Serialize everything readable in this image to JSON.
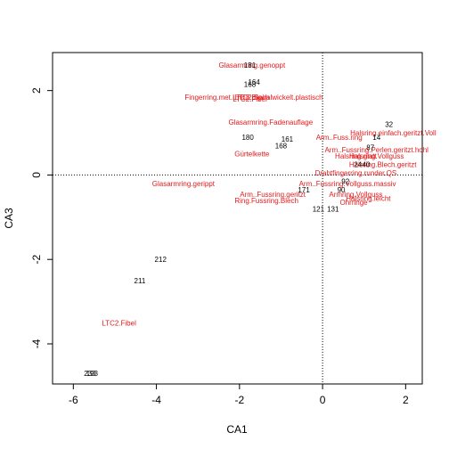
{
  "chart_data": {
    "type": "scatter",
    "title": "",
    "xlabel": "CA1",
    "ylabel": "CA3",
    "xlim": [
      -6.5,
      2.4
    ],
    "ylim": [
      -4.95,
      2.9
    ],
    "xticks": [
      -6,
      -4,
      -2,
      0,
      2
    ],
    "yticks": [
      -4,
      -2,
      0,
      2
    ],
    "reference_lines": {
      "x": 0,
      "y": 0,
      "style": "dotted"
    },
    "colors": {
      "observations": "#000000",
      "variables": "#e41a1c"
    },
    "series": [
      {
        "role": "observations",
        "points": [
          {
            "label": "181",
            "x": -1.75,
            "y": 2.6
          },
          {
            "label": "164",
            "x": -1.65,
            "y": 2.2
          },
          {
            "label": "168",
            "x": -1.75,
            "y": 2.15
          },
          {
            "label": "32",
            "x": 1.6,
            "y": 1.2
          },
          {
            "label": "180",
            "x": -1.8,
            "y": 0.9
          },
          {
            "label": "161",
            "x": -0.85,
            "y": 0.85
          },
          {
            "label": "168",
            "x": -1.0,
            "y": 0.7
          },
          {
            "label": "14",
            "x": 1.3,
            "y": 0.9
          },
          {
            "label": "87",
            "x": 1.15,
            "y": 0.65
          },
          {
            "label": "24",
            "x": 0.85,
            "y": 0.25
          },
          {
            "label": "40",
            "x": 1.05,
            "y": 0.25
          },
          {
            "label": "171",
            "x": -0.45,
            "y": -0.35
          },
          {
            "label": "92",
            "x": 0.55,
            "y": -0.15
          },
          {
            "label": "90",
            "x": 0.45,
            "y": -0.35
          },
          {
            "label": "121",
            "x": -0.1,
            "y": -0.8
          },
          {
            "label": "131",
            "x": 0.25,
            "y": -0.8
          },
          {
            "label": "212",
            "x": -3.9,
            "y": -2.0
          },
          {
            "label": "211",
            "x": -4.4,
            "y": -2.5
          },
          {
            "label": "233",
            "x": -5.6,
            "y": -4.7
          },
          {
            "label": "193",
            "x": -5.55,
            "y": -4.7
          }
        ]
      },
      {
        "role": "variables",
        "points": [
          {
            "label": "Glasarmring.genoppt",
            "x": -1.7,
            "y": 2.6
          },
          {
            "label": "Fingerring.met.LTC2.Blech",
            "x": -2.3,
            "y": 1.85
          },
          {
            "label": "LTC2.Spiralwickelt.plastisch",
            "x": -1.05,
            "y": 1.85
          },
          {
            "label": "LTC2.Fibel",
            "x": -1.75,
            "y": 1.8
          },
          {
            "label": "Glasarmring.Fadenauflage",
            "x": -1.25,
            "y": 1.25
          },
          {
            "label": "Halsring.einfach.geritzt.Voll",
            "x": 1.7,
            "y": 1.0
          },
          {
            "label": "Arm..Fuss.ring",
            "x": 0.4,
            "y": 0.9
          },
          {
            "label": "Gürtelkette",
            "x": -1.7,
            "y": 0.5
          },
          {
            "label": "Arm..Fussring.Perlen.geritzt.hohl",
            "x": 1.3,
            "y": 0.6
          },
          {
            "label": "Halsring.glatt",
            "x": 0.8,
            "y": 0.45
          },
          {
            "label": "Halsring.Vollguss",
            "x": 1.3,
            "y": 0.45
          },
          {
            "label": "Halsring.Blech.geritzt",
            "x": 1.45,
            "y": 0.25
          },
          {
            "label": "Drahtfingerring.runder.QS",
            "x": 0.8,
            "y": 0.05
          },
          {
            "label": "Arm..Fussring.Vollguss.massiv",
            "x": 0.6,
            "y": -0.2
          },
          {
            "label": "Glasarmring.gerippt",
            "x": -3.35,
            "y": -0.2
          },
          {
            "label": "Arm..Fussring.geritzt",
            "x": -1.2,
            "y": -0.45
          },
          {
            "label": "Ring.Fussring.Blech",
            "x": -1.35,
            "y": -0.6
          },
          {
            "label": "Armring.Vollguss",
            "x": 0.8,
            "y": -0.45
          },
          {
            "label": "Halsring.leicht",
            "x": 1.1,
            "y": -0.55
          },
          {
            "label": "Ohrringe",
            "x": 0.75,
            "y": -0.65
          },
          {
            "label": "LTC2.Fibel",
            "x": -4.9,
            "y": -3.5
          }
        ]
      }
    ]
  }
}
